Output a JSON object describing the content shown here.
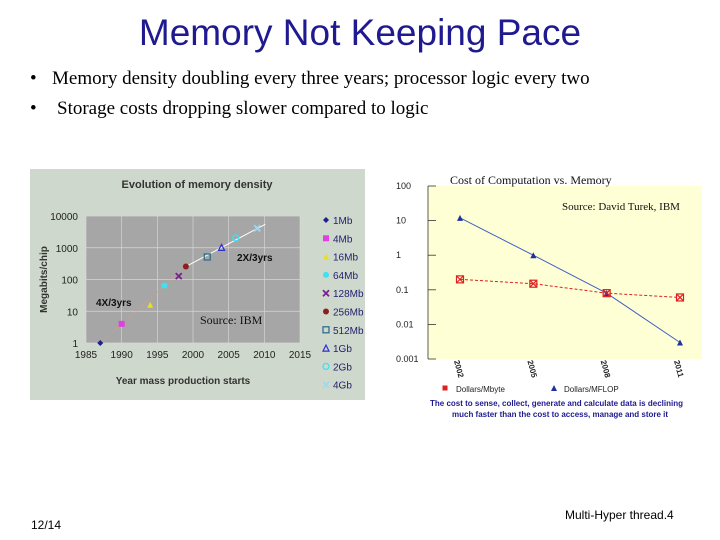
{
  "slide": {
    "title": "Memory Not Keeping Pace",
    "bullets": [
      "Memory density  doubling every three years; processor logic  every two",
      "Storage costs dropping slower compared to logic"
    ],
    "bullet_glyph": "•",
    "footer_left": "12/14",
    "footer_right": "Multi-Hyper thread.4"
  },
  "chart_data": [
    {
      "type": "scatter",
      "title": "Evolution of memory density",
      "xlabel": "Year mass production starts",
      "ylabel": "Megabits/chip",
      "xlim": [
        1985,
        2015
      ],
      "ylim": [
        1,
        10000
      ],
      "yscale": "log",
      "x_ticks": [
        1985,
        1990,
        1995,
        2000,
        2005,
        2010,
        2015
      ],
      "y_ticks": [
        1,
        10,
        100,
        1000,
        10000
      ],
      "source": "Source: IBM",
      "annotations": [
        "2X/3yrs",
        "4X/3yrs"
      ],
      "colors": {
        "panel": "#cfd8cc",
        "plot": "#a6a6a6",
        "title": "#333333"
      },
      "series": [
        {
          "name": "1Mb",
          "x": 1987,
          "y": 1,
          "color": "#1f1f8f",
          "marker": "diamond"
        },
        {
          "name": "4Mb",
          "x": 1990,
          "y": 4,
          "color": "#e040e0",
          "marker": "square"
        },
        {
          "name": "16Mb",
          "x": 1994,
          "y": 16,
          "color": "#e8e020",
          "marker": "triangle"
        },
        {
          "name": "64Mb",
          "x": 1996,
          "y": 64,
          "color": "#40e0f0",
          "marker": "circle"
        },
        {
          "name": "128Mb",
          "x": 1998,
          "y": 128,
          "color": "#7a1f8f",
          "marker": "x"
        },
        {
          "name": "256Mb",
          "x": 1999,
          "y": 256,
          "color": "#8f1f1f",
          "marker": "circle"
        },
        {
          "name": "512Mb",
          "x": 2002,
          "y": 512,
          "color": "#2f6f8f",
          "marker": "square-open"
        },
        {
          "name": "1Gb",
          "x": 2004,
          "y": 1024,
          "color": "#2f2fcf",
          "marker": "triangle-open"
        },
        {
          "name": "2Gb",
          "x": 2006,
          "y": 2048,
          "color": "#40e0f0",
          "marker": "circle-open"
        },
        {
          "name": "4Gb",
          "x": 2009,
          "y": 4096,
          "color": "#9fd8ef",
          "marker": "x"
        }
      ]
    },
    {
      "type": "line",
      "title": "Cost of Computation vs. Memory",
      "source": "Source: David Turek, IBM",
      "yscale": "log",
      "ylim": [
        0.001,
        100
      ],
      "y_ticks": [
        "100",
        "10",
        "1",
        "0.1",
        "0.01",
        "0.001"
      ],
      "categories": [
        "2002",
        "2005",
        "2008",
        "2011"
      ],
      "colors": {
        "panel": "#ffffd6",
        "caption": "#1f1a8f"
      },
      "series": [
        {
          "name": "Dollars/Mbyte",
          "values": [
            0.2,
            0.15,
            0.08,
            0.06
          ],
          "color": "#e02020",
          "marker": "square-x"
        },
        {
          "name": "Dollars/MFLOP",
          "values": [
            12,
            1,
            0.08,
            0.003
          ],
          "color": "#2030a0",
          "marker": "triangle"
        }
      ],
      "caption": "The cost to sense, collect, generate and calculate data is declining much faster than the cost to access, manage and store it"
    }
  ]
}
